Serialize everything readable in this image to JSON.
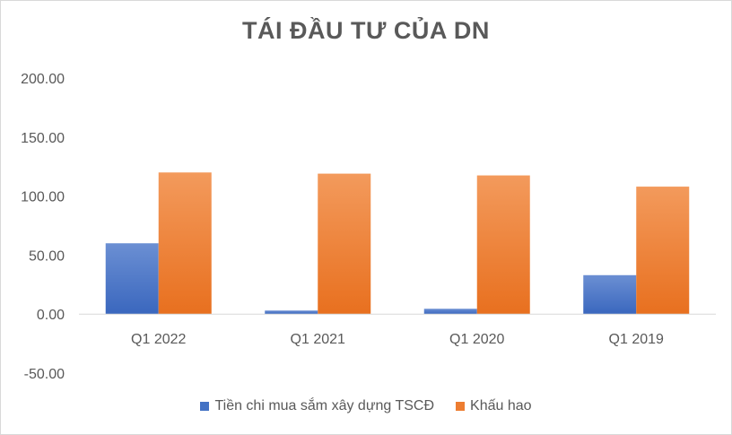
{
  "chart_data": {
    "type": "bar",
    "title": "TÁI ĐẦU TƯ CỦA DN",
    "categories": [
      "Q1 2022",
      "Q1 2021",
      "Q1 2020",
      "Q1 2019"
    ],
    "series": [
      {
        "name": "Tiền chi mua sắm xây dựng TSCĐ",
        "values": [
          60,
          3,
          4.5,
          33
        ],
        "color": "#4472c4"
      },
      {
        "name": "Khấu hao",
        "values": [
          120,
          119,
          117.5,
          108
        ],
        "color": "#ed7d31"
      }
    ],
    "yticks": [
      "200.00",
      "150.00",
      "100.00",
      "50.00",
      "0.00",
      "-50.00"
    ],
    "ylim": [
      -50,
      200
    ],
    "grid": false,
    "legend_position": "bottom"
  }
}
